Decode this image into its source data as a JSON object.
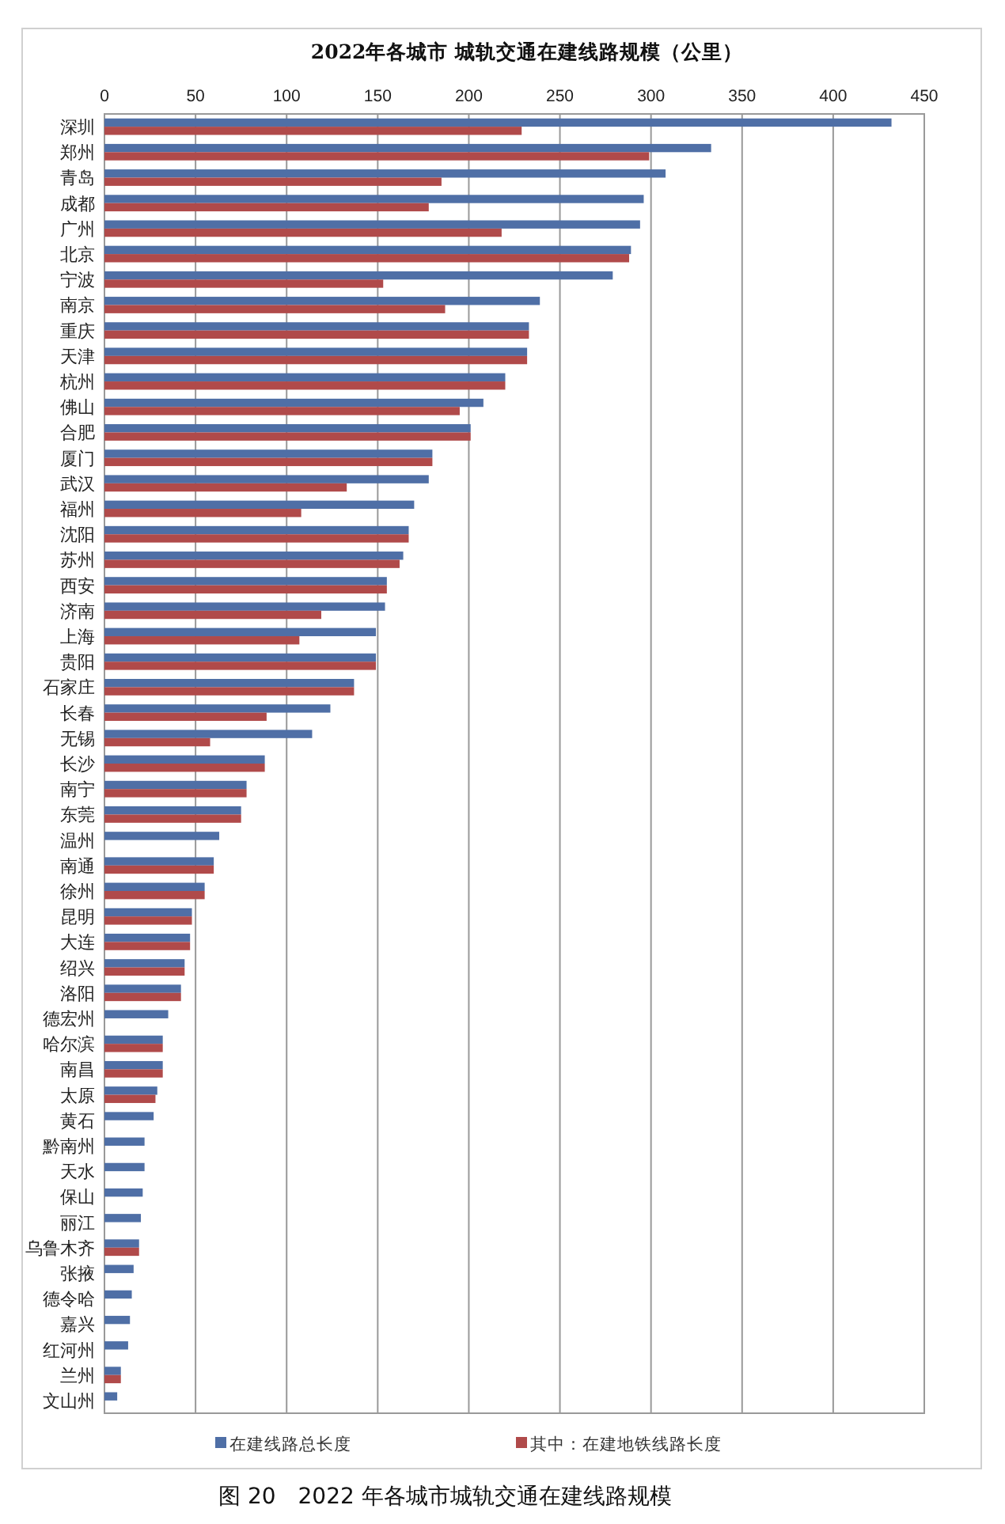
{
  "chart_data": {
    "type": "bar",
    "orientation": "horizontal",
    "title": "2022年各城市 城轨交通在建线路规模（公里）",
    "categories": [
      "深圳",
      "郑州",
      "青岛",
      "成都",
      "广州",
      "北京",
      "宁波",
      "南京",
      "重庆",
      "天津",
      "杭州",
      "佛山",
      "合肥",
      "厦门",
      "武汉",
      "福州",
      "沈阳",
      "苏州",
      "西安",
      "济南",
      "上海",
      "贵阳",
      "石家庄",
      "长春",
      "无锡",
      "长沙",
      "南宁",
      "东莞",
      "温州",
      "南通",
      "徐州",
      "昆明",
      "大连",
      "绍兴",
      "洛阳",
      "德宏州",
      "哈尔滨",
      "南昌",
      "太原",
      "黄石",
      "黔南州",
      "天水",
      "保山",
      "丽江",
      "乌鲁木齐",
      "张掖",
      "德令哈",
      "嘉兴",
      "红河州",
      "兰州",
      "文山州"
    ],
    "series": [
      {
        "name": "在建线路总长度",
        "color": "#4f6fa6",
        "values": [
          432,
          333,
          308,
          296,
          294,
          289,
          279,
          239,
          233,
          232,
          220,
          208,
          201,
          180,
          178,
          170,
          167,
          164,
          155,
          154,
          149,
          149,
          137,
          124,
          114,
          88,
          78,
          75,
          63,
          60,
          55,
          48,
          47,
          44,
          42,
          35,
          32,
          32,
          29,
          27,
          22,
          22,
          21,
          20,
          19,
          16,
          15,
          14,
          13,
          9,
          7
        ]
      },
      {
        "name": "其中：在建地铁线路长度",
        "color": "#b04a4a",
        "values": [
          229,
          299,
          185,
          178,
          218,
          288,
          153,
          187,
          233,
          232,
          220,
          195,
          201,
          180,
          133,
          108,
          167,
          162,
          155,
          119,
          107,
          149,
          137,
          89,
          58,
          88,
          78,
          75,
          null,
          60,
          55,
          48,
          47,
          44,
          42,
          null,
          32,
          32,
          28,
          null,
          null,
          null,
          null,
          null,
          19,
          null,
          null,
          null,
          null,
          9,
          null
        ]
      }
    ],
    "xlim": [
      0,
      450
    ],
    "xticks": [
      0,
      50,
      100,
      150,
      200,
      250,
      300,
      350,
      400,
      450
    ],
    "grid": "x",
    "legend": "bottom",
    "annotations": [
      "图 20　2022 年各城市城轨交通在建线路规模"
    ]
  }
}
